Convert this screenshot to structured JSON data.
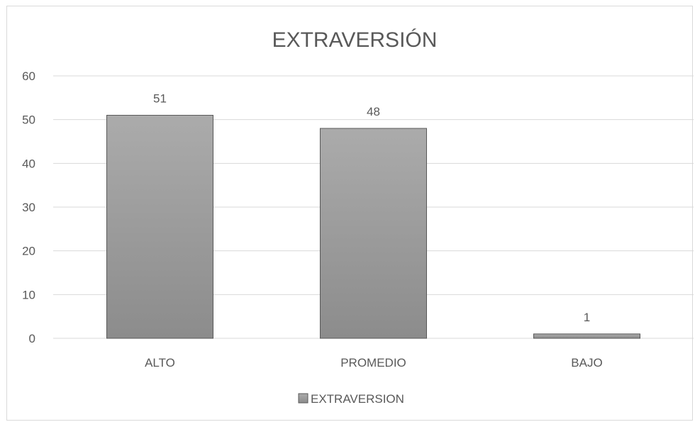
{
  "chart_data": {
    "type": "bar",
    "title": "EXTRAVERSIÓN",
    "categories": [
      "ALTO",
      "PROMEDIO",
      "BAJO"
    ],
    "series": [
      {
        "name": "EXTRAVERSION",
        "values": [
          51,
          48,
          1
        ]
      }
    ],
    "data_labels": [
      "51",
      "48",
      "1"
    ],
    "y_ticks": [
      "0",
      "10",
      "20",
      "30",
      "40",
      "50",
      "60"
    ],
    "ylim": [
      0,
      60
    ],
    "grid": true,
    "legend_position": "bottom",
    "bar_color": "#a6a6a6",
    "bar_color_dark": "#8c8c8c"
  }
}
